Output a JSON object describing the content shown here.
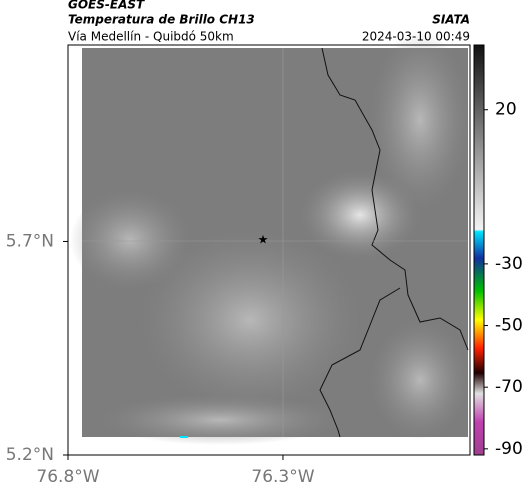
{
  "header": {
    "product": "GOES-EAST",
    "title": "Temperatura de Brillo CH13",
    "source": "SIATA",
    "subtitle": "Vía Medellín - Quibdó 50km",
    "datetime": "2024-03-10 00:49"
  },
  "map": {
    "latlim": [
      5.2,
      6.16
    ],
    "lonlim": [
      -76.8,
      -75.865
    ],
    "lat_ticks": [
      {
        "value": 5.7,
        "label": "5.7°N"
      },
      {
        "value": 5.2,
        "label": "5.2°N"
      }
    ],
    "lon_ticks": [
      {
        "value": -76.8,
        "label": "76.8°W"
      },
      {
        "value": -76.3,
        "label": "76.3°W"
      }
    ]
  },
  "colorbar": {
    "lim": [
      -92,
      41
    ],
    "ticks": [
      20,
      -30,
      -50,
      -70,
      -90
    ]
  }
}
